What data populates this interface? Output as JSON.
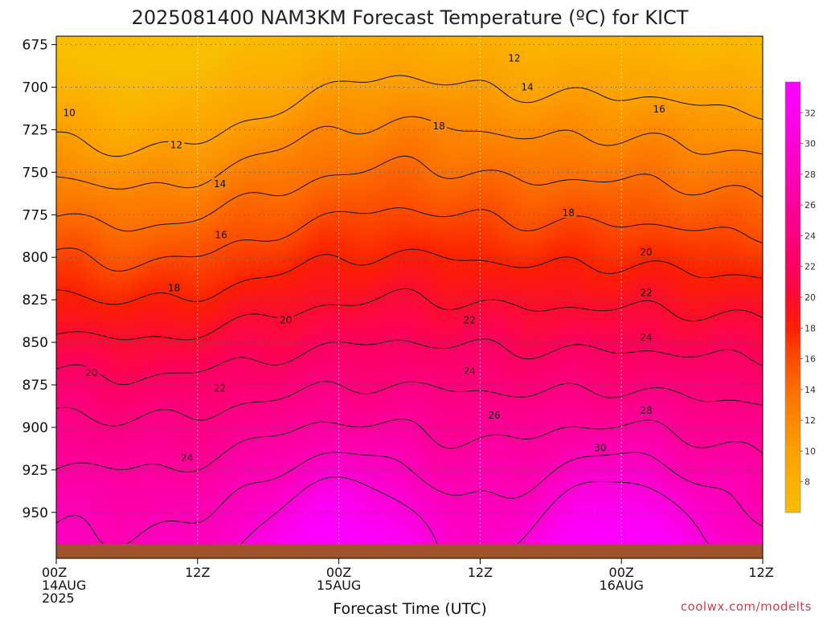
{
  "chart_data": {
    "type": "heatmap",
    "title": "2025081400 NAM3KM Forecast Temperature (ºC) for KICT",
    "xlabel": "Forecast Time (UTC)",
    "ylabel": "",
    "x_range_hours": [
      0,
      60
    ],
    "y_range_mb": [
      670,
      977
    ],
    "y_ticks": [
      "675",
      "700",
      "725",
      "750",
      "775",
      "800",
      "825",
      "850",
      "875",
      "900",
      "925",
      "950"
    ],
    "x_ticks": [
      {
        "hour": 0,
        "lines": [
          "00Z",
          "14AUG",
          "2025"
        ]
      },
      {
        "hour": 12,
        "lines": [
          "12Z"
        ]
      },
      {
        "hour": 24,
        "lines": [
          "00Z",
          "15AUG"
        ]
      },
      {
        "hour": 36,
        "lines": [
          "12Z"
        ]
      },
      {
        "hour": 48,
        "lines": [
          "00Z",
          "16AUG"
        ]
      },
      {
        "hour": 60,
        "lines": [
          "12Z"
        ]
      }
    ],
    "grid": true,
    "colorbar": {
      "placement": "right",
      "ticks": [
        "8",
        "10",
        "12",
        "14",
        "16",
        "18",
        "20",
        "22",
        "24",
        "26",
        "28",
        "30",
        "32"
      ],
      "stops": [
        {
          "t": 6,
          "color": "#f8be00"
        },
        {
          "t": 8,
          "color": "#fcb000"
        },
        {
          "t": 10,
          "color": "#fca000"
        },
        {
          "t": 12,
          "color": "#fc8800"
        },
        {
          "t": 14,
          "color": "#fc6e00"
        },
        {
          "t": 16,
          "color": "#fc4c00"
        },
        {
          "t": 18,
          "color": "#fc2000"
        },
        {
          "t": 20,
          "color": "#fc0c30"
        },
        {
          "t": 22,
          "color": "#fc0060"
        },
        {
          "t": 24,
          "color": "#fc0080"
        },
        {
          "t": 26,
          "color": "#fc009c"
        },
        {
          "t": 28,
          "color": "#fc00b8"
        },
        {
          "t": 30,
          "color": "#fc00d6"
        },
        {
          "t": 32,
          "color": "#fc00f0"
        },
        {
          "t": 34,
          "color": "#fc00ff"
        }
      ]
    },
    "contour_levels": [
      10,
      12,
      14,
      16,
      18,
      20,
      22,
      24,
      26,
      28,
      30
    ],
    "contour_labels": [
      {
        "text": "10",
        "hour": 1.1,
        "mb": 715
      },
      {
        "text": "12",
        "hour": 10.2,
        "mb": 734
      },
      {
        "text": "14",
        "hour": 13.9,
        "mb": 757
      },
      {
        "text": "16",
        "hour": 14.0,
        "mb": 787
      },
      {
        "text": "18",
        "hour": 10.0,
        "mb": 818
      },
      {
        "text": "20",
        "hour": 19.5,
        "mb": 837
      },
      {
        "text": "20",
        "hour": 3.0,
        "mb": 868
      },
      {
        "text": "22",
        "hour": 13.9,
        "mb": 877
      },
      {
        "text": "24",
        "hour": 11.1,
        "mb": 918
      },
      {
        "text": "12",
        "hour": 38.9,
        "mb": 683
      },
      {
        "text": "14",
        "hour": 40.0,
        "mb": 700
      },
      {
        "text": "16",
        "hour": 51.2,
        "mb": 713
      },
      {
        "text": "18",
        "hour": 32.5,
        "mb": 723
      },
      {
        "text": "18",
        "hour": 43.5,
        "mb": 774
      },
      {
        "text": "20",
        "hour": 50.1,
        "mb": 797
      },
      {
        "text": "22",
        "hour": 50.1,
        "mb": 821
      },
      {
        "text": "22",
        "hour": 35.1,
        "mb": 837
      },
      {
        "text": "24",
        "hour": 50.1,
        "mb": 847
      },
      {
        "text": "24",
        "hour": 35.1,
        "mb": 867
      },
      {
        "text": "26",
        "hour": 37.2,
        "mb": 893
      },
      {
        "text": "28",
        "hour": 50.1,
        "mb": 890
      },
      {
        "text": "30",
        "hour": 46.2,
        "mb": 912
      }
    ],
    "ground_color": "#a0522d"
  },
  "footer": {
    "credit": "coolwx.com/modelts"
  }
}
